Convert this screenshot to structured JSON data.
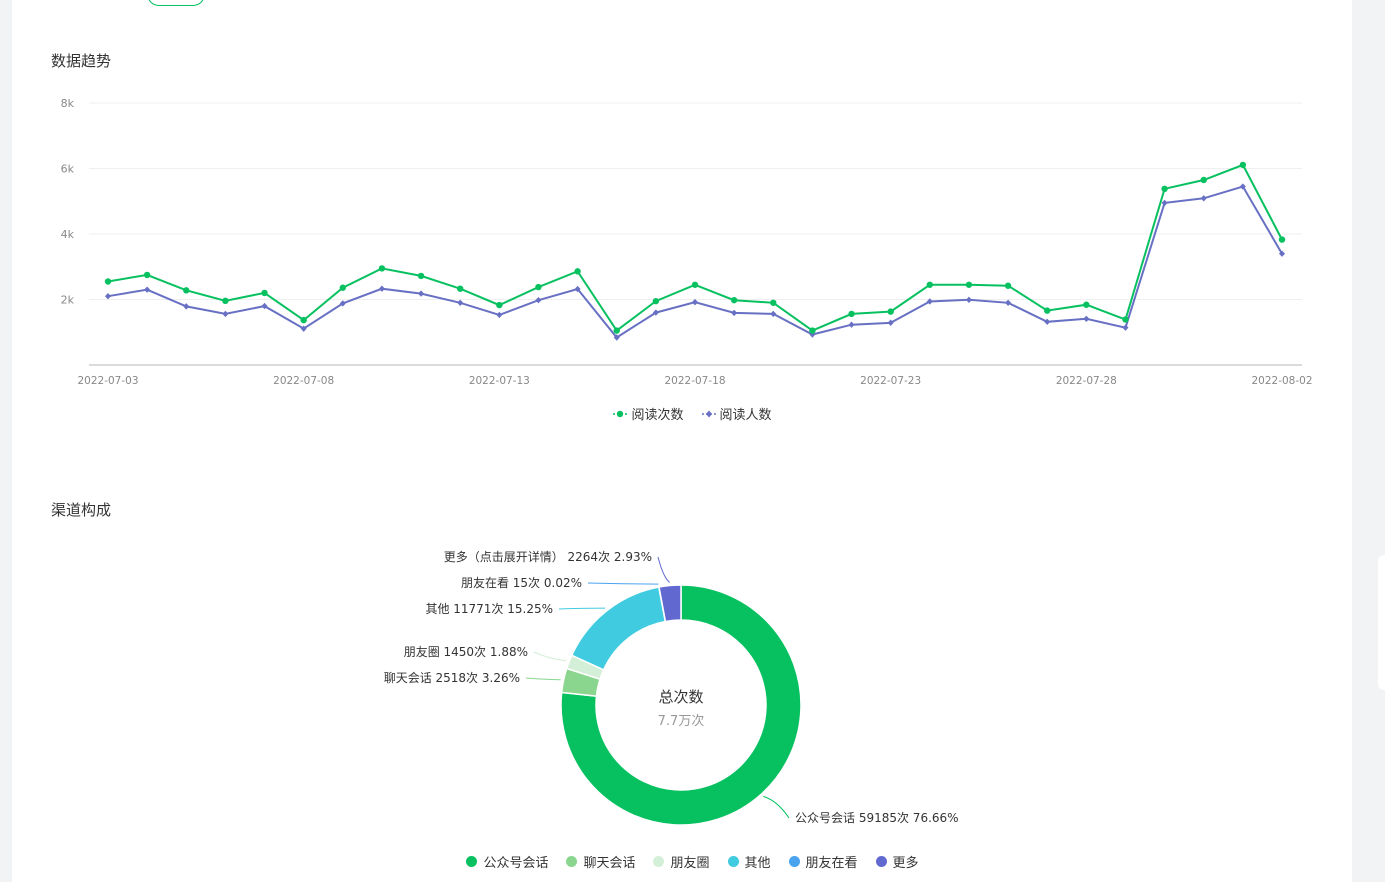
{
  "header_fragment": "",
  "trend": {
    "title": "数据趋势"
  },
  "channels": {
    "title": "渠道构成",
    "center_title": "总次数",
    "center_value": "7.7万次"
  },
  "colors": {
    "green": "#07c160",
    "purple": "#6870c4",
    "light_green": "#8ad68f",
    "pale_green": "#d4efd7",
    "cyan": "#40cbe0",
    "blue": "#4aa3ef",
    "indigo": "#6169d0"
  },
  "chart_data": [
    {
      "type": "line",
      "title": "",
      "xlabel": "",
      "ylabel": "",
      "ylim": [
        0,
        8000
      ],
      "yticks": [
        "2k",
        "4k",
        "6k",
        "8k"
      ],
      "ytick_values": [
        2000,
        4000,
        6000,
        8000
      ],
      "xtick_labels": [
        "2022-07-03",
        "2022-07-08",
        "2022-07-13",
        "2022-07-18",
        "2022-07-23",
        "2022-07-28",
        "2022-08-02"
      ],
      "x": [
        "2022-07-03",
        "2022-07-04",
        "2022-07-05",
        "2022-07-06",
        "2022-07-07",
        "2022-07-08",
        "2022-07-09",
        "2022-07-10",
        "2022-07-11",
        "2022-07-12",
        "2022-07-13",
        "2022-07-14",
        "2022-07-15",
        "2022-07-16",
        "2022-07-17",
        "2022-07-18",
        "2022-07-19",
        "2022-07-20",
        "2022-07-21",
        "2022-07-22",
        "2022-07-23",
        "2022-07-24",
        "2022-07-25",
        "2022-07-26",
        "2022-07-27",
        "2022-07-28",
        "2022-07-29",
        "2022-07-30",
        "2022-07-31",
        "2022-08-01",
        "2022-08-02"
      ],
      "series": [
        {
          "name": "阅读次数",
          "color": "#07c160",
          "marker": "circle",
          "values": [
            2550,
            2750,
            2280,
            1960,
            2200,
            1370,
            2360,
            2950,
            2720,
            2330,
            1830,
            2380,
            2860,
            1050,
            1950,
            2450,
            1980,
            1900,
            1050,
            1560,
            1630,
            2450,
            2450,
            2420,
            1660,
            1840,
            1390,
            5380,
            5650,
            6110,
            3830
          ]
        },
        {
          "name": "阅读人数",
          "color": "#6870c4",
          "marker": "diamond",
          "values": [
            2100,
            2300,
            1790,
            1560,
            1800,
            1110,
            1880,
            2330,
            2180,
            1900,
            1530,
            1980,
            2320,
            840,
            1600,
            1920,
            1590,
            1560,
            930,
            1230,
            1290,
            1940,
            1990,
            1900,
            1320,
            1410,
            1140,
            4950,
            5090,
            5450,
            3400
          ]
        }
      ],
      "legend_position": "bottom-center",
      "grid": true
    },
    {
      "type": "pie",
      "subtype": "donut",
      "center_title": "总次数",
      "center_value": "7.7万次",
      "legend_position": "bottom-center",
      "slices": [
        {
          "name": "公众号会话",
          "value": 59185,
          "percent": 76.66,
          "color": "#07c160",
          "label": "公众号会话 59185次 76.66%"
        },
        {
          "name": "聊天会话",
          "value": 2518,
          "percent": 3.26,
          "color": "#8ad68f",
          "label": "聊天会话 2518次 3.26%"
        },
        {
          "name": "朋友圈",
          "value": 1450,
          "percent": 1.88,
          "color": "#d4efd7",
          "label": "朋友圈 1450次 1.88%"
        },
        {
          "name": "其他",
          "value": 11771,
          "percent": 15.25,
          "color": "#40cbe0",
          "label": "其他 11771次 15.25%"
        },
        {
          "name": "朋友在看",
          "value": 15,
          "percent": 0.02,
          "color": "#4aa3ef",
          "label": "朋友在看 15次 0.02%"
        },
        {
          "name": "更多",
          "value": 2264,
          "percent": 2.93,
          "color": "#6169d0",
          "label": "更多（点击展开详情） 2264次 2.93%"
        }
      ]
    }
  ]
}
